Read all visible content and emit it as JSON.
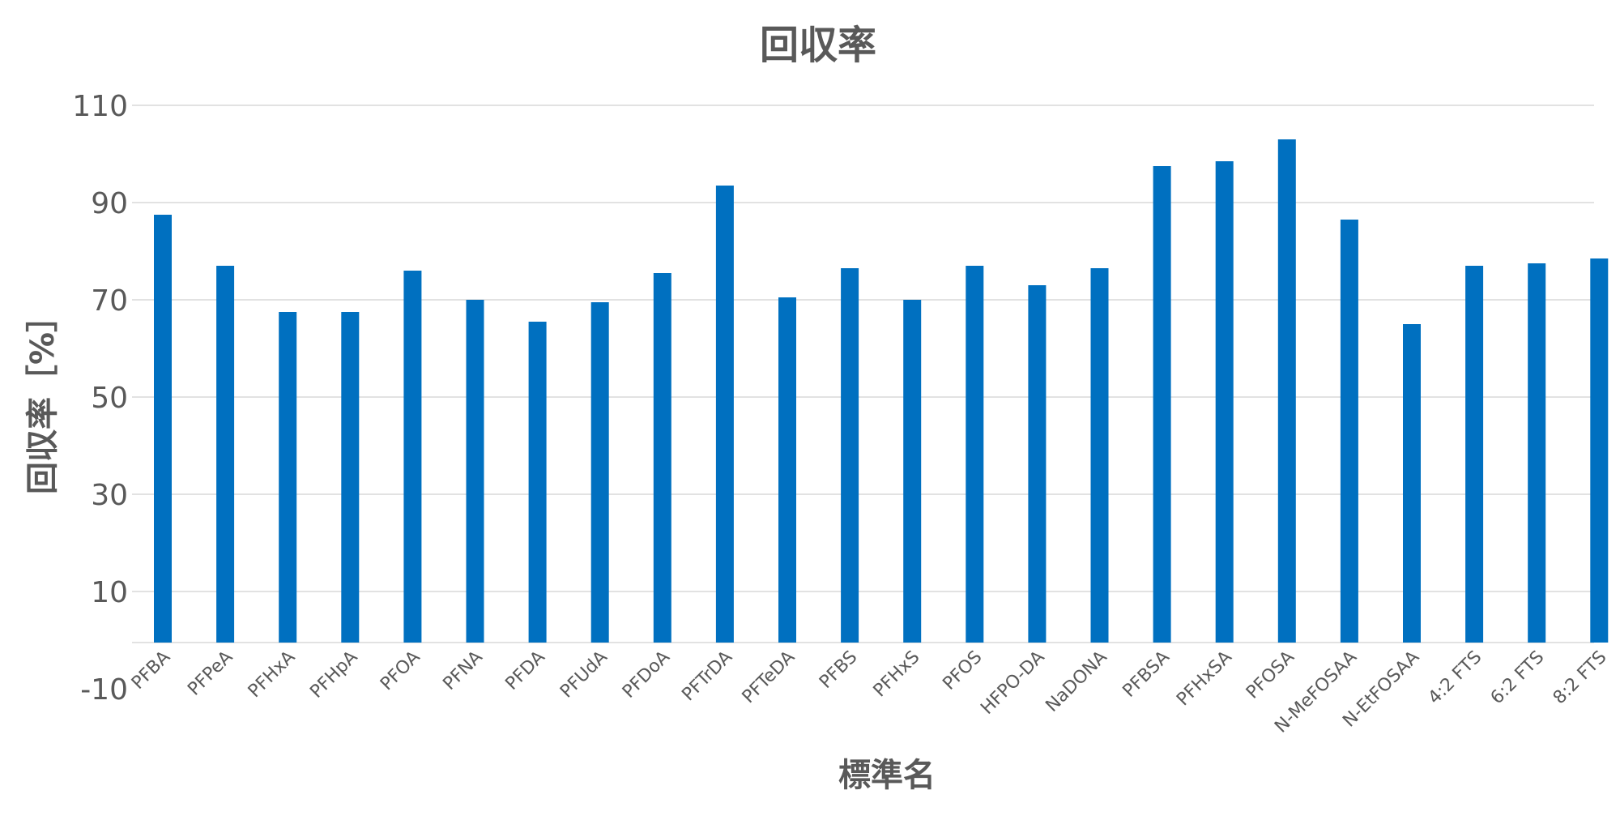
{
  "chart_data": {
    "type": "bar",
    "title": "回収率",
    "xlabel": "標準名",
    "ylabel": "回収率［%］",
    "ylim": [
      -10,
      110
    ],
    "yticks": [
      -10,
      10,
      30,
      50,
      70,
      90,
      110
    ],
    "grid": true,
    "bar_color": "#0070c0",
    "categories": [
      "PFBA",
      "PFPeA",
      "PFHxA",
      "PFHpA",
      "PFOA",
      "PFNA",
      "PFDA",
      "PFUdA",
      "PFDoA",
      "PFTrDA",
      "PFTeDA",
      "PFBS",
      "PFHxS",
      "PFOS",
      "HFPO-DA",
      "NaDONA",
      "PFBSA",
      "PFHxSA",
      "PFOSA",
      "N-MeFOSAA",
      "N-EtFOSAA",
      "4:2 FTS",
      "6:2 FTS",
      "8:2 FTS"
    ],
    "values": [
      87.5,
      77,
      67.5,
      67.5,
      76,
      70,
      65.5,
      69.5,
      75.5,
      93.5,
      70.5,
      76.5,
      70,
      77,
      73,
      76.5,
      97.5,
      98.5,
      103,
      86.5,
      65,
      77,
      77.5,
      78.5
    ]
  }
}
